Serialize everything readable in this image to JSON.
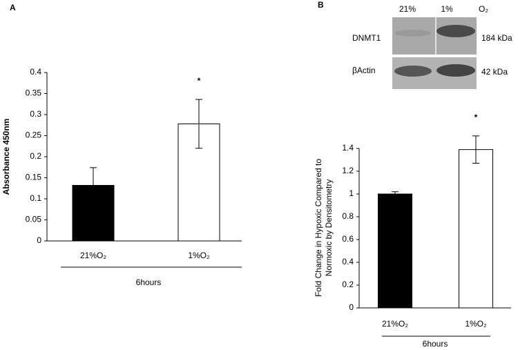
{
  "panel_labels": [
    "A",
    "B"
  ],
  "blot": {
    "lanes": [
      "21%",
      "1%"
    ],
    "condition": "O₂",
    "rows": [
      {
        "protein": "DNMT1",
        "size": "184 kDa"
      },
      {
        "protein": "βActin",
        "size": "42 kDa"
      }
    ]
  },
  "chart_data": [
    {
      "type": "bar",
      "ylabel": "Absorbance 450nm",
      "categories": [
        "21%O₂",
        "1%O₂"
      ],
      "group_label": "6hours",
      "values": [
        0.132,
        0.278
      ],
      "errors": [
        0.042,
        0.058
      ],
      "colors": [
        "#000000",
        "#ffffff"
      ],
      "significance_marker": "*",
      "ylim": [
        0,
        0.4
      ],
      "yticks": [
        0,
        0.05,
        0.1,
        0.15,
        0.2,
        0.25,
        0.3,
        0.35,
        0.4
      ],
      "grid": false
    },
    {
      "type": "bar",
      "ylabel": [
        "Fold Change in Hypoxic Compared to",
        "Normoxic by Densitometry"
      ],
      "categories": [
        "21%O₂",
        "1%O₂"
      ],
      "group_label": "6hours",
      "values": [
        1.0,
        1.39
      ],
      "errors": [
        0.02,
        0.12
      ],
      "colors": [
        "#000000",
        "#ffffff"
      ],
      "significance_marker": "*",
      "ylim": [
        0,
        1.4
      ],
      "yticks": [
        0,
        0.2,
        0.4,
        0.6,
        0.8,
        1,
        1.2,
        1.4
      ],
      "grid": false
    }
  ]
}
